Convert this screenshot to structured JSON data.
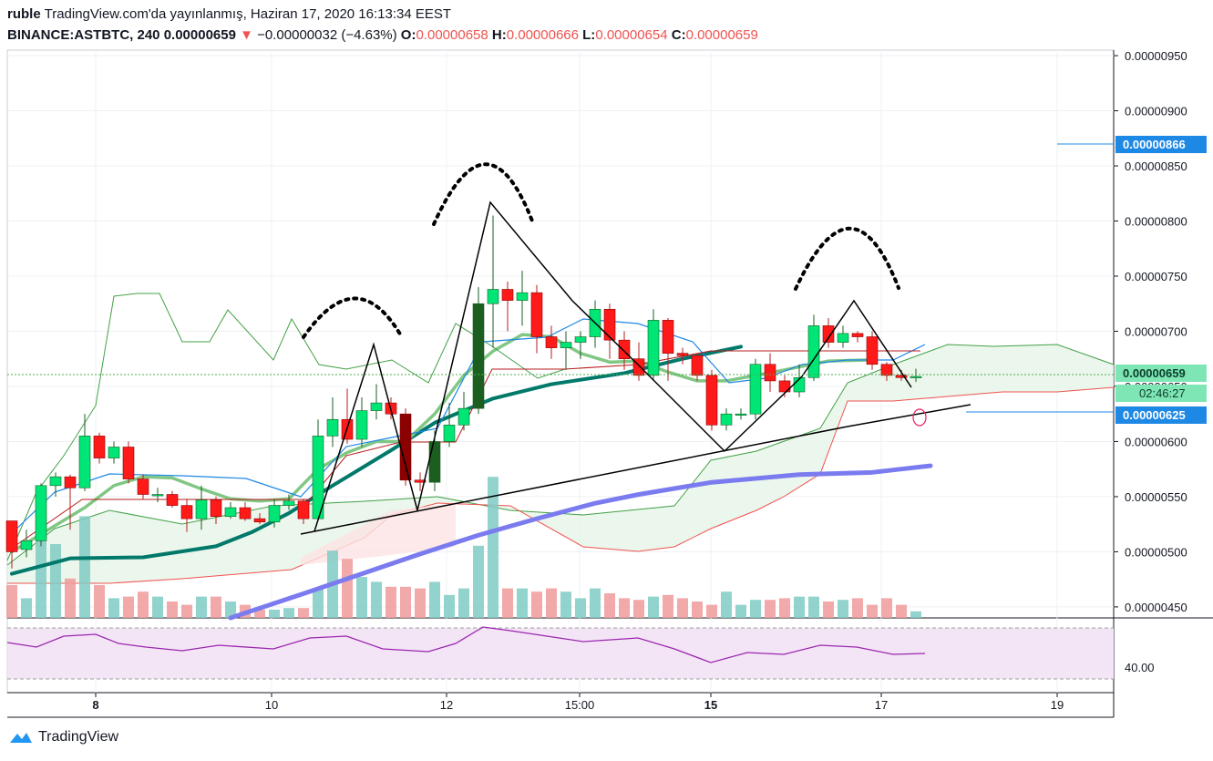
{
  "header": {
    "user": "ruble",
    "published": "TradingView.com'da yayınlanmış, Haziran 17, 2020 16:13:34 EEST",
    "symbol": "BINANCE:ASTBTC, 240",
    "price": "0.00000659",
    "change_arrow": "▼",
    "change": "−0.00000032 (−4.63%)",
    "o_label": "O:",
    "o_value": "0.00000658",
    "h_label": "H:",
    "h_value": "0.00000666",
    "l_label": "L:",
    "l_value": "0.00000654",
    "c_label": "C:",
    "c_value": "0.00000659"
  },
  "footer": {
    "brand": "TradingView"
  },
  "colors": {
    "up_candle": "#00e676",
    "up_candle_dark": "#1b5e20",
    "down_candle": "#ff1a1a",
    "down_candle_dark": "#8b0000",
    "ema_teal": "#00796b",
    "ema_purple": "#7b7bf0",
    "ema_lightgreen": "#81c784",
    "kumo_fill": "#e8f5e9",
    "rsi_band": "#f3e5f5",
    "rsi_line": "#9c27b0",
    "blue_price": "#1e88e5",
    "green_price": "#7ee5b5"
  },
  "chart_data": {
    "type": "candlestick",
    "x_tick_labels": [
      "8",
      "10",
      "12",
      "15:00",
      "15",
      "17",
      "19"
    ],
    "y_tick_labels": [
      "0.00000950",
      "0.00000900",
      "0.00000850",
      "0.00000800",
      "0.00000750",
      "0.00000700",
      "0.00000650",
      "0.00000600",
      "0.00000550",
      "0.00000500",
      "0.00000450"
    ],
    "ylim": [
      4.4e-06,
      9.55e-06
    ],
    "price_badges": [
      {
        "value": "0.00000866",
        "color": "#1e88e5"
      },
      {
        "value": "0.00000659",
        "color": "#7ee5b5"
      },
      {
        "value": "0.00000625",
        "color": "#1e88e5"
      }
    ],
    "countdown": "02:46:27",
    "rsi": {
      "level_label": "40.00"
    },
    "candles": [
      [
        5.28,
        5.0,
        4.85,
        5.28
      ],
      [
        5.02,
        5.1,
        4.95,
        5.2
      ],
      [
        5.1,
        5.6,
        5.05,
        5.62
      ],
      [
        5.6,
        5.68,
        5.5,
        5.72
      ],
      [
        5.68,
        5.58,
        5.2,
        5.7
      ],
      [
        5.58,
        6.05,
        5.55,
        6.25
      ],
      [
        6.05,
        5.85,
        5.8,
        6.08
      ],
      [
        5.85,
        5.95,
        5.8,
        6.0
      ],
      [
        5.95,
        5.66,
        5.62,
        6.0
      ],
      [
        5.66,
        5.52,
        5.48,
        5.7
      ],
      [
        5.52,
        5.52,
        5.45,
        5.58
      ],
      [
        5.52,
        5.42,
        5.4,
        5.55
      ],
      [
        5.42,
        5.3,
        5.18,
        5.48
      ],
      [
        5.3,
        5.47,
        5.2,
        5.6
      ],
      [
        5.47,
        5.32,
        5.25,
        5.5
      ],
      [
        5.32,
        5.4,
        5.3,
        5.45
      ],
      [
        5.4,
        5.3,
        5.28,
        5.45
      ],
      [
        5.3,
        5.27,
        5.25,
        5.35
      ],
      [
        5.27,
        5.42,
        5.22,
        5.48
      ],
      [
        5.42,
        5.46,
        5.38,
        5.52
      ],
      [
        5.46,
        5.3,
        5.25,
        5.48
      ],
      [
        5.3,
        6.05,
        5.28,
        6.2
      ],
      [
        6.05,
        6.2,
        5.95,
        6.4
      ],
      [
        6.2,
        6.02,
        5.98,
        6.48
      ],
      [
        6.02,
        6.28,
        5.95,
        6.4
      ],
      [
        6.28,
        6.35,
        6.2,
        6.52
      ],
      [
        6.35,
        6.25,
        6.2,
        6.4
      ],
      [
        6.25,
        5.65,
        5.6,
        6.3
      ],
      [
        5.65,
        5.63,
        5.55,
        5.72
      ],
      [
        5.63,
        6.0,
        5.55,
        6.1
      ],
      [
        6.0,
        6.15,
        5.95,
        6.35
      ],
      [
        6.15,
        6.3,
        6.1,
        6.45
      ],
      [
        6.3,
        7.25,
        6.25,
        7.4
      ],
      [
        7.25,
        7.38,
        6.85,
        8.05
      ],
      [
        7.38,
        7.28,
        7.0,
        7.45
      ],
      [
        7.28,
        7.35,
        7.05,
        7.55
      ],
      [
        7.35,
        6.95,
        6.8,
        7.42
      ],
      [
        6.95,
        6.85,
        6.75,
        7.05
      ],
      [
        6.85,
        6.9,
        6.65,
        7.0
      ],
      [
        6.9,
        6.95,
        6.75,
        7.0
      ],
      [
        6.95,
        7.2,
        6.85,
        7.28
      ],
      [
        7.2,
        6.92,
        6.75,
        7.25
      ],
      [
        6.92,
        6.75,
        6.65,
        7.0
      ],
      [
        6.75,
        6.6,
        6.55,
        6.9
      ],
      [
        6.6,
        7.1,
        6.55,
        7.2
      ],
      [
        7.1,
        6.8,
        6.55,
        7.12
      ],
      [
        6.8,
        6.78,
        6.7,
        6.85
      ],
      [
        6.78,
        6.6,
        6.55,
        6.8
      ],
      [
        6.6,
        6.15,
        6.1,
        6.65
      ],
      [
        6.15,
        6.25,
        6.1,
        6.3
      ],
      [
        6.25,
        6.25,
        6.2,
        6.3
      ],
      [
        6.25,
        6.7,
        6.2,
        6.75
      ],
      [
        6.7,
        6.55,
        6.45,
        6.8
      ],
      [
        6.55,
        6.45,
        6.4,
        6.6
      ],
      [
        6.45,
        6.58,
        6.4,
        6.7
      ],
      [
        6.58,
        7.05,
        6.55,
        7.15
      ],
      [
        7.05,
        6.9,
        6.85,
        7.12
      ],
      [
        6.9,
        6.98,
        6.85,
        7.05
      ],
      [
        6.98,
        6.95,
        6.9,
        7.0
      ],
      [
        6.95,
        6.7,
        6.65,
        7.0
      ],
      [
        6.7,
        6.6,
        6.55,
        6.72
      ],
      [
        6.6,
        6.58,
        6.55,
        6.65
      ],
      [
        6.58,
        6.59,
        6.54,
        6.66
      ]
    ],
    "volumes": [
      2.0,
      1.2,
      5.5,
      4.5,
      2.4,
      6.2,
      2.0,
      1.2,
      1.3,
      1.6,
      1.3,
      1.0,
      0.8,
      1.3,
      1.3,
      1.0,
      0.8,
      0.5,
      0.5,
      0.6,
      0.6,
      1.8,
      4.1,
      3.6,
      2.5,
      2.2,
      1.9,
      1.9,
      1.8,
      2.2,
      1.4,
      1.8,
      4.4,
      8.6,
      1.8,
      1.8,
      1.6,
      1.8,
      1.6,
      1.2,
      1.8,
      1.5,
      1.2,
      1.1,
      1.3,
      1.4,
      1.2,
      1.0,
      0.8,
      1.6,
      0.8,
      1.1,
      1.1,
      1.2,
      1.3,
      1.3,
      1.0,
      1.1,
      1.2,
      0.8,
      1.2,
      0.8,
      0.4
    ],
    "ema_teal": [
      [
        0,
        4.8
      ],
      [
        8,
        4.94
      ],
      [
        18,
        4.95
      ],
      [
        28,
        5.05
      ],
      [
        33,
        5.18
      ],
      [
        38,
        5.35
      ],
      [
        44,
        5.6
      ],
      [
        48,
        5.76
      ],
      [
        52,
        5.92
      ],
      [
        58,
        6.17
      ],
      [
        66,
        6.39
      ],
      [
        74,
        6.52
      ],
      [
        84,
        6.62
      ],
      [
        92,
        6.75
      ],
      [
        100,
        6.86
      ]
    ],
    "ema_purple": [
      [
        30,
        4.4
      ],
      [
        40,
        4.62
      ],
      [
        48,
        4.8
      ],
      [
        56,
        4.98
      ],
      [
        64,
        5.15
      ],
      [
        72,
        5.3
      ],
      [
        80,
        5.44
      ],
      [
        86,
        5.52
      ],
      [
        96,
        5.63
      ],
      [
        108,
        5.7
      ],
      [
        118,
        5.72
      ],
      [
        126,
        5.78
      ]
    ],
    "ema_light": [
      [
        0,
        5.0
      ],
      [
        5,
        5.2
      ],
      [
        10,
        5.4
      ],
      [
        14,
        5.6
      ],
      [
        18,
        5.68
      ],
      [
        22,
        5.67
      ],
      [
        26,
        5.57
      ],
      [
        30,
        5.48
      ],
      [
        34,
        5.46
      ],
      [
        38,
        5.48
      ],
      [
        42,
        5.75
      ],
      [
        46,
        5.9
      ],
      [
        50,
        6.0
      ],
      [
        54,
        6.0
      ],
      [
        58,
        6.25
      ],
      [
        62,
        6.6
      ],
      [
        66,
        6.82
      ],
      [
        70,
        6.97
      ],
      [
        74,
        6.95
      ],
      [
        78,
        6.8
      ],
      [
        82,
        6.72
      ],
      [
        86,
        6.73
      ],
      [
        90,
        6.63
      ],
      [
        94,
        6.55
      ],
      [
        98,
        6.55
      ],
      [
        102,
        6.6
      ],
      [
        106,
        6.65
      ],
      [
        112,
        6.73
      ],
      [
        118,
        6.74
      ]
    ]
  }
}
